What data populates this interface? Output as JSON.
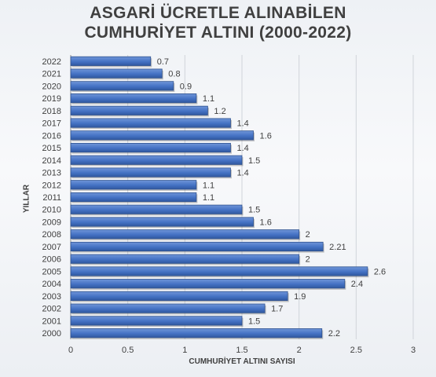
{
  "chart_data": {
    "type": "bar",
    "orientation": "horizontal",
    "title_lines": [
      "ASGARİ ÜCRETLE ALINABİLEN",
      "CUMHURİYET ALTINI (2000-2022)"
    ],
    "xlabel": "CUMHURİYET ALTINI SAYISI",
    "ylabel": "YILLAR",
    "xlim": [
      0,
      3
    ],
    "xticks": [
      "0",
      "0.5",
      "1",
      "1.5",
      "2",
      "2.5",
      "3"
    ],
    "grid": "vertical",
    "bar_color": "#4472c4",
    "categories": [
      "2000",
      "2001",
      "2002",
      "2003",
      "2004",
      "2005",
      "2006",
      "2007",
      "2008",
      "2009",
      "2010",
      "2011",
      "2012",
      "2013",
      "2014",
      "2015",
      "2016",
      "2017",
      "2018",
      "2019",
      "2020",
      "2021",
      "2022"
    ],
    "values": [
      2.2,
      1.5,
      1.7,
      1.9,
      2.4,
      2.6,
      2,
      2.21,
      2,
      1.6,
      1.5,
      1.1,
      1.1,
      1.4,
      1.5,
      1.4,
      1.6,
      1.4,
      1.2,
      1.1,
      0.9,
      0.8,
      0.7
    ],
    "data_labels": [
      "2.2",
      "1.5",
      "1.7",
      "1.9",
      "2.4",
      "2.6",
      "2",
      "2.21",
      "2",
      "1.6",
      "1.5",
      "1.1",
      "1.1",
      "1.4",
      "1.5",
      "1.4",
      "1.6",
      "1.4",
      "1.2",
      "1.1",
      "0.9",
      "0.8",
      "0.7"
    ]
  }
}
